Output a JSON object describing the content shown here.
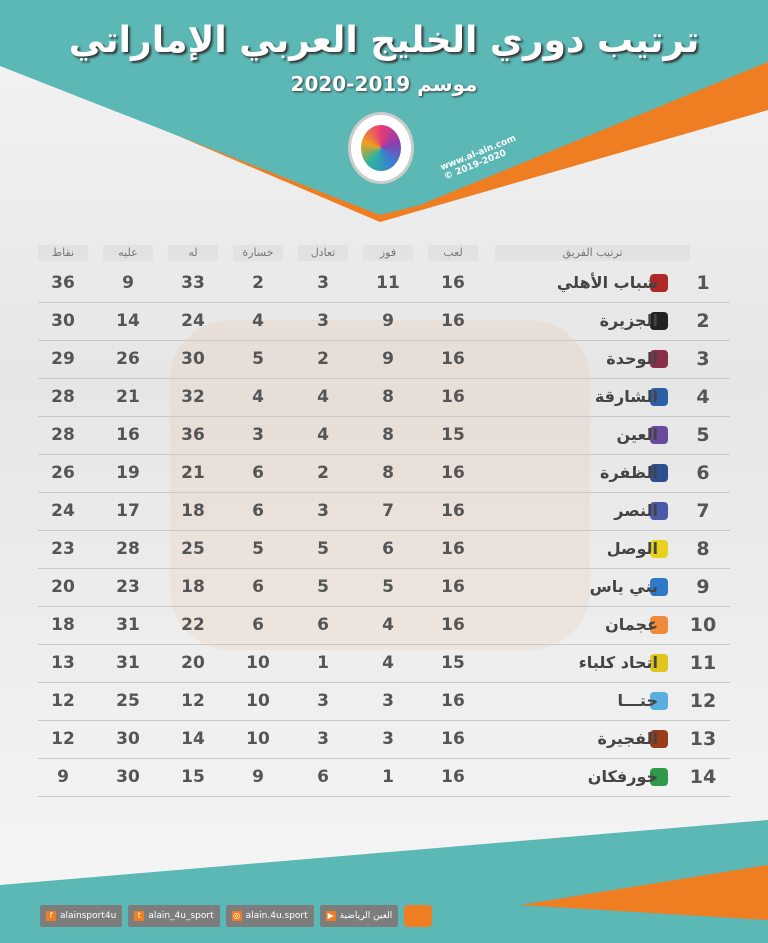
{
  "title": "ترتيب دوري الخليج العربي الإماراتي",
  "season": "موسم 2019-2020",
  "site": {
    "url": "www.al-ain.com",
    "copyright": "© 2019-2020"
  },
  "colors": {
    "teal": "#5bb8b5",
    "orange": "#ef7d22"
  },
  "headers": {
    "team": "ترتيب الفريق",
    "played": "لعب",
    "won": "فوز",
    "drawn": "تعادل",
    "lost": "خسارة",
    "gf": "له",
    "ga": "عليه",
    "pts": "نقاط"
  },
  "rows": [
    {
      "rank": "1",
      "team": "شباب الأهلي",
      "played": "16",
      "won": "11",
      "drawn": "3",
      "lost": "2",
      "gf": "33",
      "ga": "9",
      "pts": "36",
      "logo": "#b0282a"
    },
    {
      "rank": "2",
      "team": "الجزيرة",
      "played": "16",
      "won": "9",
      "drawn": "3",
      "lost": "4",
      "gf": "24",
      "ga": "14",
      "pts": "30",
      "logo": "#222222"
    },
    {
      "rank": "3",
      "team": "الوحدة",
      "played": "16",
      "won": "9",
      "drawn": "2",
      "lost": "5",
      "gf": "30",
      "ga": "26",
      "pts": "29",
      "logo": "#8a2f4a"
    },
    {
      "rank": "4",
      "team": "الشارقة",
      "played": "16",
      "won": "8",
      "drawn": "4",
      "lost": "4",
      "gf": "32",
      "ga": "21",
      "pts": "28",
      "logo": "#2d5fa8"
    },
    {
      "rank": "5",
      "team": "العين",
      "played": "15",
      "won": "8",
      "drawn": "4",
      "lost": "3",
      "gf": "36",
      "ga": "16",
      "pts": "28",
      "logo": "#6a4a9c"
    },
    {
      "rank": "6",
      "team": "الظفرة",
      "played": "16",
      "won": "8",
      "drawn": "2",
      "lost": "6",
      "gf": "21",
      "ga": "19",
      "pts": "26",
      "logo": "#2e4f8f"
    },
    {
      "rank": "7",
      "team": "النصر",
      "played": "16",
      "won": "7",
      "drawn": "3",
      "lost": "6",
      "gf": "18",
      "ga": "17",
      "pts": "24",
      "logo": "#4a5aa8"
    },
    {
      "rank": "8",
      "team": "الوصل",
      "played": "16",
      "won": "6",
      "drawn": "5",
      "lost": "5",
      "gf": "25",
      "ga": "28",
      "pts": "23",
      "logo": "#e8d21e"
    },
    {
      "rank": "9",
      "team": "بني ياس",
      "played": "16",
      "won": "5",
      "drawn": "5",
      "lost": "6",
      "gf": "18",
      "ga": "23",
      "pts": "20",
      "logo": "#2e7ac9"
    },
    {
      "rank": "10",
      "team": "عجمان",
      "played": "16",
      "won": "4",
      "drawn": "6",
      "lost": "6",
      "gf": "22",
      "ga": "31",
      "pts": "18",
      "logo": "#ef8a3a"
    },
    {
      "rank": "11",
      "team": "اتحاد كلباء",
      "played": "15",
      "won": "4",
      "drawn": "1",
      "lost": "10",
      "gf": "20",
      "ga": "31",
      "pts": "13",
      "logo": "#e0c51c"
    },
    {
      "rank": "12",
      "team": "حتـــا",
      "played": "16",
      "won": "3",
      "drawn": "3",
      "lost": "10",
      "gf": "12",
      "ga": "25",
      "pts": "12",
      "logo": "#5aaee0"
    },
    {
      "rank": "13",
      "team": "الفجيرة",
      "played": "16",
      "won": "3",
      "drawn": "3",
      "lost": "10",
      "gf": "14",
      "ga": "30",
      "pts": "12",
      "logo": "#9a3b1c"
    },
    {
      "rank": "14",
      "team": "خورفكان",
      "played": "16",
      "won": "1",
      "drawn": "6",
      "lost": "9",
      "gf": "15",
      "ga": "30",
      "pts": "9",
      "logo": "#2e9a4a"
    }
  ],
  "footer": {
    "facebook": "alainsport4u",
    "twitter": "alain_4u_sport",
    "instagram": "alain.4u.sport",
    "youtube": "العين الرياضية"
  }
}
